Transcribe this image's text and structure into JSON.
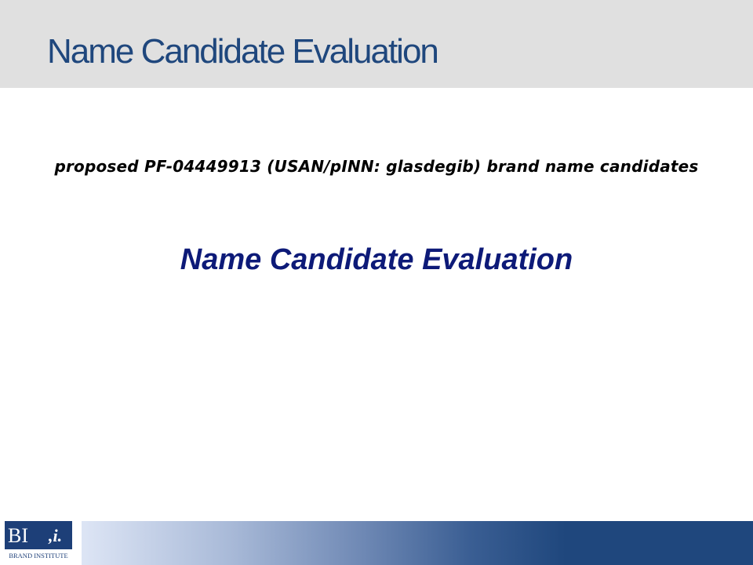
{
  "header": {
    "title": "Name Candidate Evaluation"
  },
  "content": {
    "subtitle": "proposed PF-04449913 (USAN/pINN: glasdegib) brand name candidates",
    "heading": "Name Candidate Evaluation"
  },
  "footer": {
    "logo": {
      "mark": "BI",
      "mark_italic": ",i.",
      "caption": "BRAND INSTITUTE"
    }
  },
  "colors": {
    "title": "#1f477d",
    "heading": "#0d1a78",
    "header_band": "#e0e0e0",
    "footer_dark": "#1f477d",
    "footer_light": "#dde5f5"
  }
}
